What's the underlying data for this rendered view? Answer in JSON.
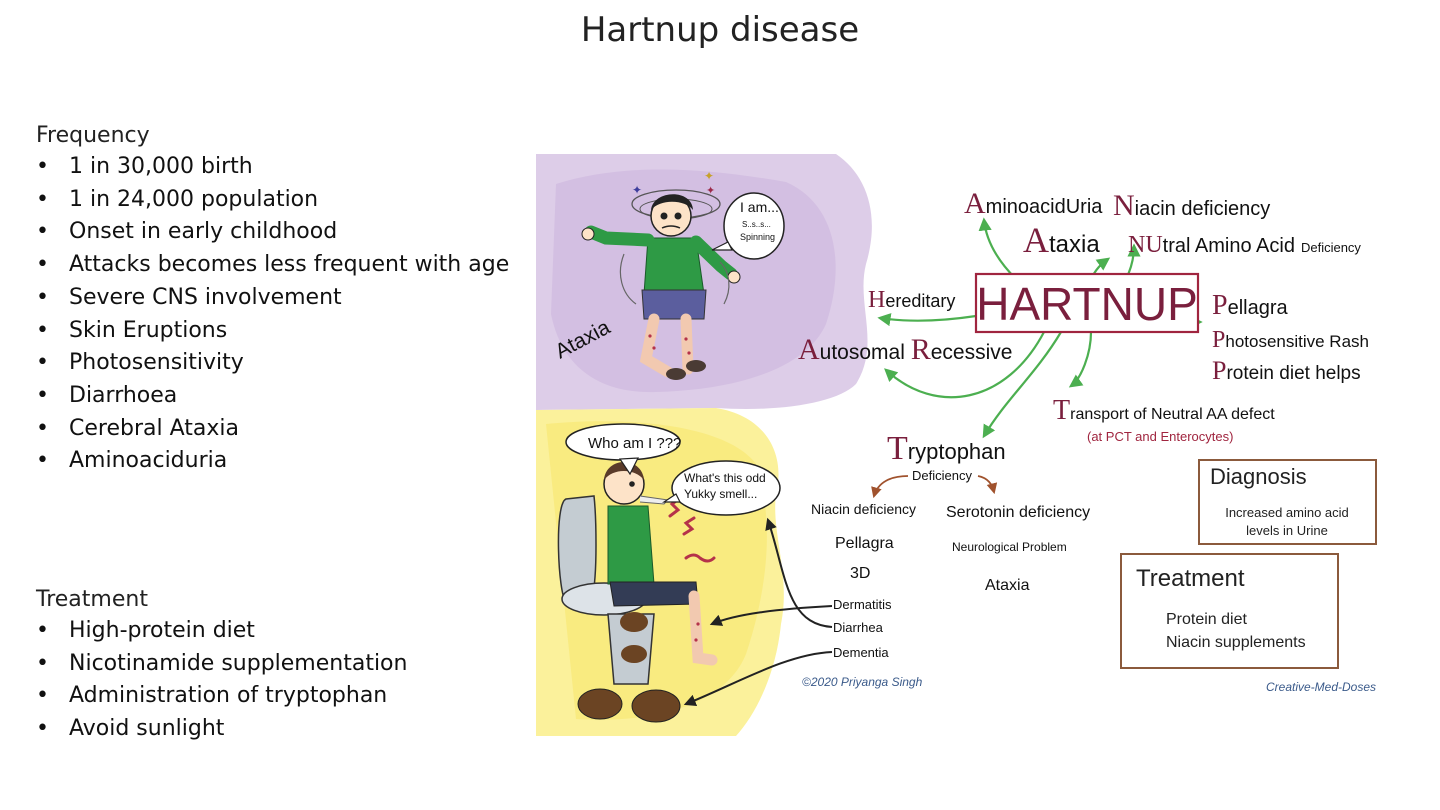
{
  "slide": {
    "title": "Hartnup disease"
  },
  "frequency": {
    "heading": "Frequency",
    "items": [
      "1 in 30,000 birth",
      "1 in 24,000 population",
      "Onset in early childhood",
      "Attacks becomes less frequent with age",
      "Severe CNS involvement",
      "Skin Eruptions",
      "Photosensitivity",
      "Diarrhoea",
      "Cerebral Ataxia",
      "Aminoaciduria"
    ]
  },
  "treatment": {
    "heading": "Treatment",
    "items": [
      "High-protein diet",
      "Nicotinamide supplementation",
      "Administration of tryptophan",
      "Avoid sunlight"
    ]
  },
  "figure": {
    "ataxia_label": "Ataxia",
    "bubble1": {
      "line1": "I am...",
      "line2": "S..s..s...",
      "line3": "Spinning"
    },
    "bubble2": "Who am I ???",
    "bubble3": {
      "line1": "What's this odd",
      "line2": "Yukky smell..."
    },
    "hub": "HARTNUP",
    "aminoaciduria": {
      "initial": "A",
      "rest": "minoacidUria"
    },
    "niacin_def": {
      "initial": "N",
      "rest": "iacin deficiency"
    },
    "ataxia": {
      "initial": "A",
      "rest": "taxia"
    },
    "nutral": {
      "initial": "NU",
      "rest": "tral Amino Acid",
      "small": "Deficiency"
    },
    "hereditary": {
      "initial": "H",
      "rest": "ereditary"
    },
    "autosomal": {
      "initial1": "A",
      "rest1": "utosomal ",
      "initial2": "R",
      "rest2": "ecessive"
    },
    "pellagra": {
      "initial": "P",
      "rest": "ellagra"
    },
    "photosensitive": {
      "initial": "P",
      "rest": "hotosensitive Rash"
    },
    "protein": {
      "initial": "P",
      "rest": "rotein diet helps"
    },
    "transport": {
      "initial": "T",
      "rest": "ransport of Neutral AA defect",
      "sub": "(at PCT and Enterocytes)"
    },
    "tryptophan": {
      "initial": "T",
      "rest": "ryptophan",
      "sub": "Deficiency"
    },
    "niacin_branch": [
      "Niacin deficiency",
      "Pellagra",
      "3D",
      "Dermatitis",
      "Diarrhea",
      "Dementia"
    ],
    "serotonin_branch": [
      "Serotonin deficiency",
      "Neurological Problem",
      "Ataxia"
    ],
    "diagnosis": {
      "title": "Diagnosis",
      "line1": "Increased amino acid",
      "line2": "levels in Urine"
    },
    "treatment_box": {
      "title": "Treatment",
      "line1": "Protein diet",
      "line2": "Niacin supplements"
    },
    "credit": "©2020 Priyanga Singh",
    "brand": "Creative-Med-Doses"
  },
  "colors": {
    "maroon": "#7a1f3d",
    "arrow_green": "#4caf50",
    "transport_red": "#a0253f",
    "box_brown": "#8b5a3c",
    "lavender": "#d9c8e6",
    "yellow": "#fbf19b",
    "shirt_green": "#2e9a45",
    "credit_blue": "#3a5a8a"
  }
}
